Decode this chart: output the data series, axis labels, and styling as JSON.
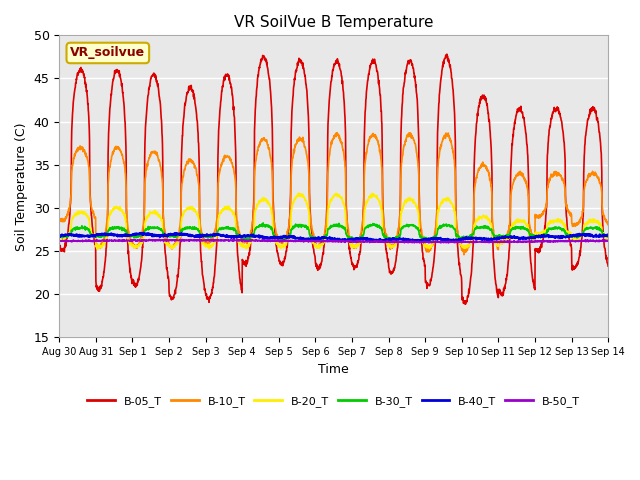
{
  "title": "VR SoilVue B Temperature",
  "xlabel": "Time",
  "ylabel": "Soil Temperature (C)",
  "ylim": [
    15,
    50
  ],
  "plot_bg_color": "#e8e8e8",
  "annotation_text": "VR_soilvue",
  "annotation_bg": "#ffffcc",
  "annotation_border": "#ccaa00",
  "series": [
    {
      "name": "B-05_T",
      "color": "#dd0000",
      "lw": 1.2
    },
    {
      "name": "B-10_T",
      "color": "#ff8800",
      "lw": 1.2
    },
    {
      "name": "B-20_T",
      "color": "#ffee00",
      "lw": 1.2
    },
    {
      "name": "B-30_T",
      "color": "#00cc00",
      "lw": 1.2
    },
    {
      "name": "B-40_T",
      "color": "#0000dd",
      "lw": 1.5
    },
    {
      "name": "B-50_T",
      "color": "#9900cc",
      "lw": 1.2
    }
  ],
  "xtick_labels": [
    "Aug 30",
    "Aug 31",
    "Sep 1",
    "Sep 2",
    "Sep 3",
    "Sep 4",
    "Sep 5",
    "Sep 6",
    "Sep 7",
    "Sep 8",
    "Sep 9",
    "Sep 10",
    "Sep 11",
    "Sep 12",
    "Sep 13",
    "Sep 14"
  ],
  "ytick_labels": [
    15,
    20,
    25,
    30,
    35,
    40,
    45,
    50
  ],
  "n_days": 15,
  "pts_per_day": 144
}
